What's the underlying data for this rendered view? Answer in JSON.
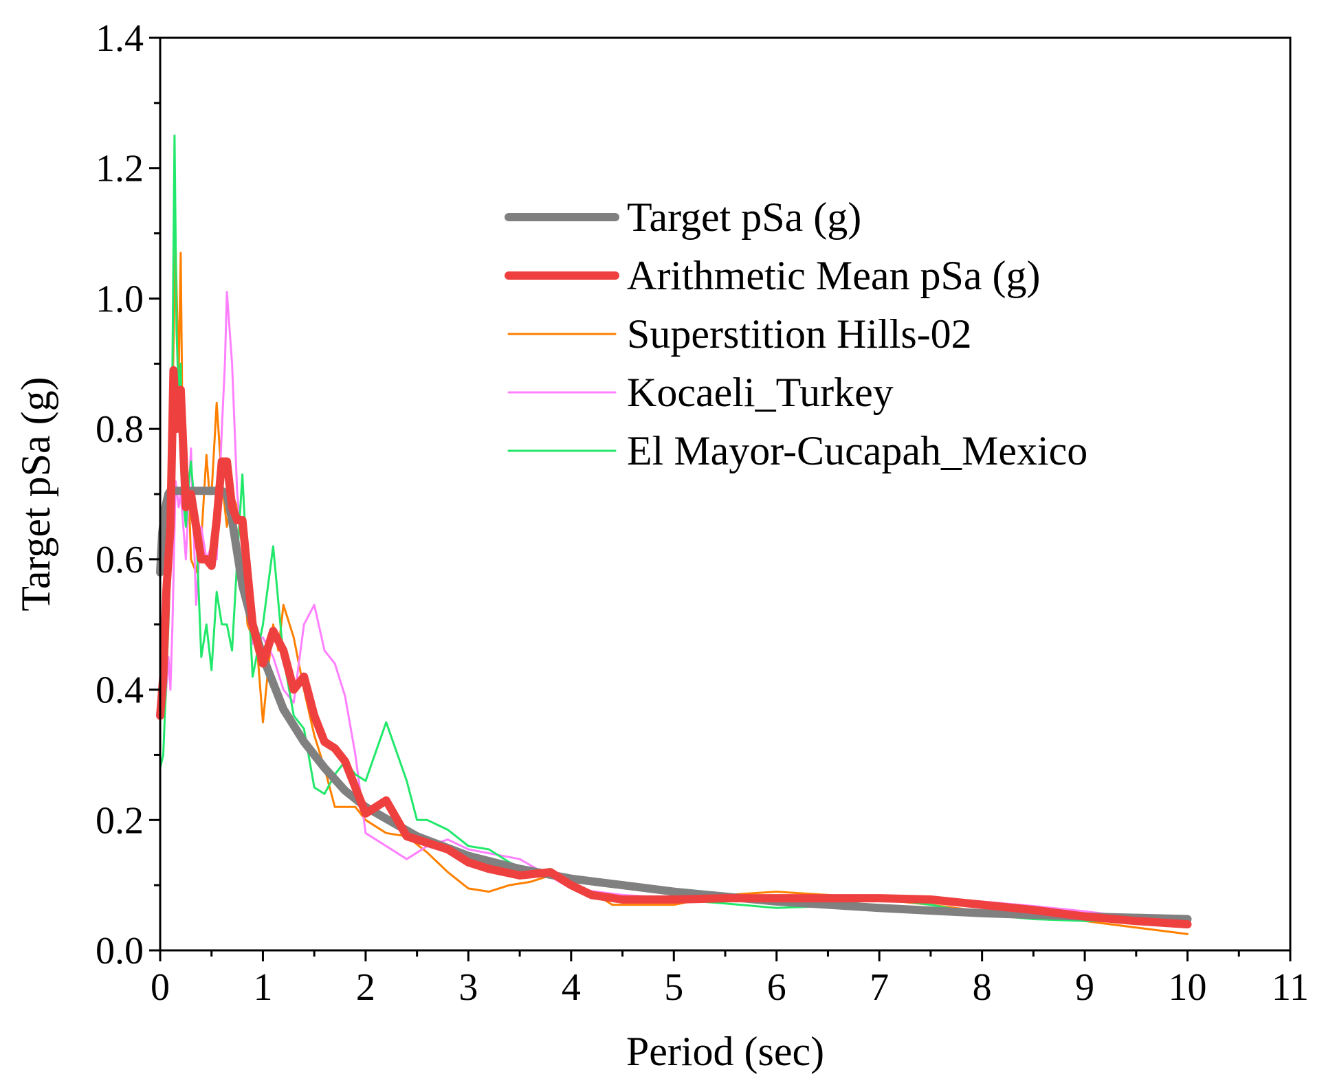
{
  "chart_data": {
    "type": "line",
    "title": "",
    "xlabel": "Period (sec)",
    "ylabel": "Target pSa (g)",
    "xlim": [
      0,
      11
    ],
    "ylim": [
      0,
      1.4
    ],
    "xticks": [
      0,
      1,
      2,
      3,
      4,
      5,
      6,
      7,
      8,
      9,
      10,
      11
    ],
    "xtick_labels": [
      "0",
      "1",
      "2",
      "3",
      "4",
      "5",
      "6",
      "7",
      "8",
      "9",
      "10",
      "11"
    ],
    "yticks": [
      0,
      0.2,
      0.4,
      0.6,
      0.8,
      1.0,
      1.2,
      1.4
    ],
    "ytick_labels": [
      "0.0",
      "0.2",
      "0.4",
      "0.6",
      "0.8",
      "1.0",
      "1.2",
      "1.4"
    ],
    "grid": false,
    "legend_position": "upper-right",
    "series": [
      {
        "name": "Target pSa (g)",
        "color": "#808080",
        "weight": "heavy",
        "x": [
          0,
          0.02,
          0.05,
          0.08,
          0.1,
          0.15,
          0.2,
          0.3,
          0.4,
          0.5,
          0.55,
          0.6,
          0.65,
          0.7,
          0.8,
          0.9,
          1.0,
          1.2,
          1.4,
          1.6,
          1.8,
          2.0,
          2.5,
          3.0,
          3.5,
          4.0,
          4.5,
          5.0,
          6.0,
          7.0,
          8.0,
          9.0,
          10.0
        ],
        "y": [
          0.58,
          0.64,
          0.68,
          0.7,
          0.705,
          0.705,
          0.705,
          0.705,
          0.705,
          0.705,
          0.705,
          0.705,
          0.7,
          0.66,
          0.56,
          0.5,
          0.45,
          0.37,
          0.32,
          0.28,
          0.245,
          0.22,
          0.175,
          0.145,
          0.125,
          0.11,
          0.1,
          0.09,
          0.075,
          0.065,
          0.057,
          0.052,
          0.048
        ]
      },
      {
        "name": "Arithmetic Mean pSa (g)",
        "color": "#ef4040",
        "weight": "heavy",
        "x": [
          0,
          0.03,
          0.06,
          0.1,
          0.13,
          0.16,
          0.2,
          0.25,
          0.3,
          0.35,
          0.4,
          0.45,
          0.5,
          0.55,
          0.6,
          0.65,
          0.7,
          0.75,
          0.8,
          0.9,
          1.0,
          1.1,
          1.2,
          1.3,
          1.4,
          1.5,
          1.6,
          1.7,
          1.8,
          1.9,
          2.0,
          2.2,
          2.4,
          2.6,
          2.8,
          3.0,
          3.2,
          3.5,
          3.8,
          4.0,
          4.2,
          4.5,
          5.0,
          5.5,
          6.0,
          6.5,
          7.0,
          7.5,
          8.0,
          8.5,
          9.0,
          9.5,
          10.0
        ],
        "y": [
          0.36,
          0.42,
          0.55,
          0.65,
          0.89,
          0.8,
          0.86,
          0.68,
          0.7,
          0.65,
          0.6,
          0.6,
          0.59,
          0.66,
          0.75,
          0.75,
          0.68,
          0.66,
          0.66,
          0.5,
          0.44,
          0.49,
          0.46,
          0.4,
          0.42,
          0.36,
          0.32,
          0.31,
          0.29,
          0.25,
          0.21,
          0.23,
          0.175,
          0.165,
          0.155,
          0.135,
          0.125,
          0.115,
          0.12,
          0.1,
          0.085,
          0.078,
          0.078,
          0.08,
          0.08,
          0.08,
          0.08,
          0.078,
          0.07,
          0.062,
          0.052,
          0.045,
          0.04
        ]
      },
      {
        "name": "Superstition Hills-02",
        "color": "#ff8000",
        "weight": "light",
        "x": [
          0,
          0.03,
          0.05,
          0.08,
          0.1,
          0.12,
          0.15,
          0.18,
          0.2,
          0.22,
          0.25,
          0.28,
          0.3,
          0.35,
          0.4,
          0.45,
          0.48,
          0.5,
          0.55,
          0.6,
          0.65,
          0.7,
          0.75,
          0.8,
          0.85,
          0.9,
          0.95,
          1.0,
          1.05,
          1.1,
          1.15,
          1.2,
          1.3,
          1.4,
          1.5,
          1.6,
          1.7,
          1.8,
          1.9,
          2.0,
          2.2,
          2.4,
          2.6,
          2.8,
          3.0,
          3.2,
          3.4,
          3.6,
          3.8,
          4.0,
          4.2,
          4.4,
          5.0,
          5.5,
          6.0,
          6.5,
          7.0,
          7.5,
          8.0,
          8.5,
          9.0,
          9.5,
          10.0
        ],
        "y": [
          0.42,
          0.53,
          0.38,
          0.55,
          0.58,
          0.85,
          1.08,
          0.88,
          1.07,
          0.75,
          0.66,
          0.7,
          0.6,
          0.58,
          0.63,
          0.76,
          0.7,
          0.7,
          0.84,
          0.72,
          0.65,
          0.7,
          0.68,
          0.62,
          0.5,
          0.48,
          0.45,
          0.35,
          0.43,
          0.5,
          0.46,
          0.53,
          0.48,
          0.4,
          0.33,
          0.28,
          0.22,
          0.22,
          0.22,
          0.2,
          0.18,
          0.175,
          0.15,
          0.12,
          0.095,
          0.09,
          0.1,
          0.105,
          0.115,
          0.1,
          0.09,
          0.07,
          0.07,
          0.085,
          0.09,
          0.085,
          0.078,
          0.07,
          0.06,
          0.052,
          0.045,
          0.035,
          0.025
        ]
      },
      {
        "name": "Kocaeli_Turkey",
        "color": "#ff80ff",
        "weight": "light",
        "x": [
          0,
          0.03,
          0.05,
          0.08,
          0.1,
          0.12,
          0.15,
          0.18,
          0.2,
          0.25,
          0.3,
          0.35,
          0.4,
          0.45,
          0.5,
          0.55,
          0.6,
          0.63,
          0.65,
          0.7,
          0.75,
          0.8,
          0.85,
          0.9,
          1.0,
          1.1,
          1.2,
          1.3,
          1.4,
          1.5,
          1.6,
          1.7,
          1.8,
          1.9,
          2.0,
          2.2,
          2.4,
          2.6,
          2.8,
          3.0,
          3.5,
          4.0,
          4.5,
          5.0,
          5.5,
          6.0,
          6.5,
          7.0,
          7.5,
          8.0,
          8.5,
          9.0,
          9.5,
          10.0
        ],
        "y": [
          0.38,
          0.42,
          0.38,
          0.45,
          0.4,
          0.5,
          0.72,
          0.68,
          0.7,
          0.6,
          0.77,
          0.53,
          0.65,
          0.6,
          0.62,
          0.6,
          0.8,
          0.9,
          1.01,
          0.9,
          0.7,
          0.62,
          0.52,
          0.47,
          0.48,
          0.45,
          0.4,
          0.38,
          0.5,
          0.53,
          0.46,
          0.44,
          0.39,
          0.3,
          0.18,
          0.16,
          0.14,
          0.16,
          0.17,
          0.155,
          0.14,
          0.095,
          0.085,
          0.08,
          0.078,
          0.075,
          0.078,
          0.082,
          0.08,
          0.075,
          0.068,
          0.06,
          0.05,
          0.045
        ]
      },
      {
        "name": "El Mayor-Cucapah_Mexico",
        "color": "#21e86a",
        "weight": "light",
        "x": [
          0,
          0.03,
          0.05,
          0.08,
          0.1,
          0.12,
          0.14,
          0.16,
          0.18,
          0.2,
          0.22,
          0.25,
          0.28,
          0.3,
          0.35,
          0.4,
          0.45,
          0.5,
          0.55,
          0.6,
          0.65,
          0.7,
          0.75,
          0.8,
          0.9,
          1.0,
          1.1,
          1.2,
          1.3,
          1.4,
          1.5,
          1.6,
          1.7,
          1.8,
          1.9,
          2.0,
          2.2,
          2.4,
          2.5,
          2.6,
          2.8,
          3.0,
          3.2,
          3.4,
          3.6,
          3.8,
          4.0,
          4.2,
          4.5,
          5.0,
          5.5,
          6.0,
          6.5,
          7.0,
          7.5,
          8.0,
          8.5,
          9.0,
          9.5,
          10.0
        ],
        "y": [
          0.28,
          0.3,
          0.38,
          0.5,
          0.6,
          0.9,
          1.25,
          0.95,
          0.85,
          0.9,
          0.7,
          0.65,
          0.72,
          0.75,
          0.65,
          0.45,
          0.5,
          0.43,
          0.55,
          0.5,
          0.5,
          0.46,
          0.6,
          0.73,
          0.42,
          0.5,
          0.62,
          0.45,
          0.36,
          0.34,
          0.25,
          0.24,
          0.27,
          0.29,
          0.27,
          0.26,
          0.35,
          0.26,
          0.2,
          0.2,
          0.185,
          0.16,
          0.155,
          0.135,
          0.12,
          0.125,
          0.095,
          0.085,
          0.075,
          0.078,
          0.072,
          0.065,
          0.068,
          0.08,
          0.07,
          0.055,
          0.048,
          0.045,
          0.045,
          0.045
        ]
      }
    ]
  }
}
